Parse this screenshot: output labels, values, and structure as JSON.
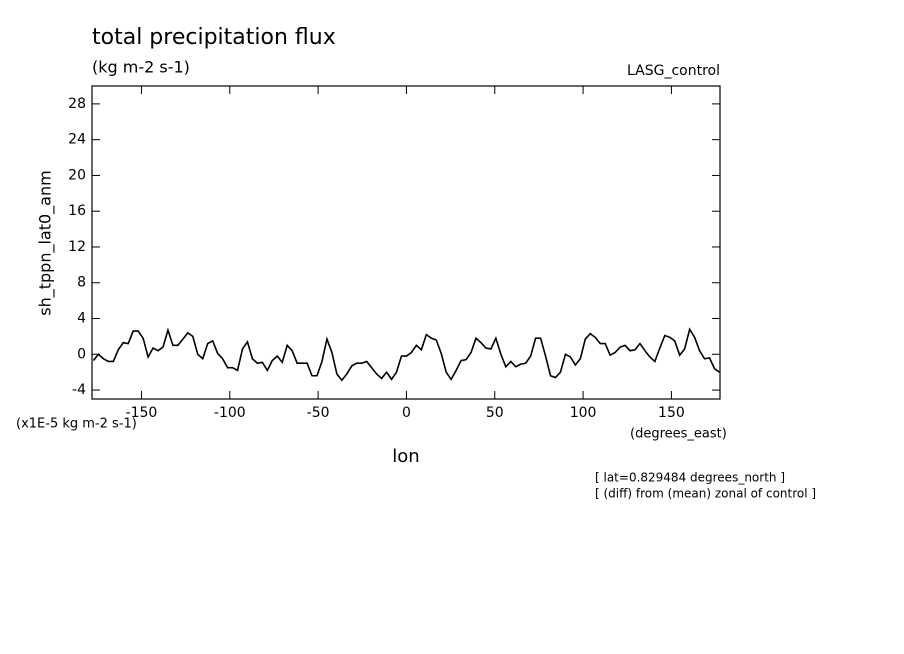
{
  "chart_data": {
    "type": "line",
    "title": "total precipitation flux",
    "subtitle": "(kg m-2 s-1)",
    "dataset_label": "LASG_control",
    "y_label": "sh_tppn_lat0_anm",
    "y_units": "(x1E-5 kg m-2 s-1)",
    "x_units": "(degrees_east)",
    "x_label": "lon",
    "annotations": [
      "[ lat=0.829484 degrees_north ]",
      "[ (diff) from (mean) zonal of control ]"
    ],
    "x": [
      -177.1875,
      -174.375,
      -171.5625,
      -168.75,
      -165.9375,
      -163.125,
      -160.3125,
      -157.5,
      -154.6875,
      -151.875,
      -149.0625,
      -146.25,
      -143.4375,
      -140.625,
      -137.8125,
      -135,
      -132.1875,
      -129.375,
      -126.5625,
      -123.75,
      -120.9375,
      -118.125,
      -115.3125,
      -112.5,
      -109.6875,
      -106.875,
      -104.0625,
      -101.25,
      -98.4375,
      -95.625,
      -92.8125,
      -90,
      -87.1875,
      -84.375,
      -81.5625,
      -78.75,
      -75.9375,
      -73.125,
      -70.3125,
      -67.5,
      -64.6875,
      -61.875,
      -59.0625,
      -56.25,
      -53.4375,
      -50.625,
      -47.8125,
      -45,
      -42.1875,
      -39.375,
      -36.5625,
      -33.75,
      -30.9375,
      -28.125,
      -25.3125,
      -22.5,
      -19.6875,
      -16.875,
      -14.0625,
      -11.25,
      -8.4375,
      -5.625,
      -2.8125,
      0,
      2.8125,
      5.625,
      8.4375,
      11.25,
      14.0625,
      16.875,
      19.6875,
      22.5,
      25.3125,
      28.125,
      30.9375,
      33.75,
      36.5625,
      39.375,
      42.1875,
      45,
      47.8125,
      50.625,
      53.4375,
      56.25,
      59.0625,
      61.875,
      64.6875,
      67.5,
      70.3125,
      73.125,
      75.9375,
      78.75,
      81.5625,
      84.375,
      87.1875,
      90,
      92.8125,
      95.625,
      98.4375,
      101.25,
      104.0625,
      106.875,
      109.6875,
      112.5,
      115.3125,
      118.125,
      120.9375,
      123.75,
      126.5625,
      129.375,
      132.1875,
      135,
      137.8125,
      140.625,
      143.4375,
      146.25,
      149.0625,
      151.875,
      154.6875,
      157.5,
      160.3125,
      163.125,
      165.9375,
      168.75,
      171.5625,
      174.375,
      177.1875
    ],
    "series": [
      {
        "color": "#000000",
        "values": [
          -0.7,
          0,
          -0.5,
          -0.8,
          -0.8,
          0.5,
          1.3,
          1.2,
          2.6,
          2.6,
          1.8,
          -0.3,
          0.7,
          0.4,
          0.8,
          2.7,
          1.0,
          1.0,
          1.7,
          2.4,
          2.0,
          0.0,
          -0.5,
          1.2,
          1.5,
          0.1,
          -0.5,
          -1.5,
          -1.5,
          -1.8,
          0.6,
          1.4,
          -0.5,
          -1.0,
          -0.9,
          -1.8,
          -0.7,
          -0.2,
          -0.9,
          1.0,
          0.4,
          -1.0,
          -1.0,
          -1.0,
          -2.4,
          -2.4,
          -0.8,
          1.7,
          0.2,
          -2.2,
          -2.9,
          -2.2,
          -1.3,
          -1.0,
          -1.0,
          -0.8,
          -1.5,
          -2.2,
          -2.7,
          -2.0,
          -2.8,
          -2.0,
          -0.2,
          -0.2,
          0.2,
          1.0,
          0.5,
          2.2,
          1.8,
          1.6,
          0.1,
          -2.0,
          -2.8,
          -1.8,
          -0.7,
          -0.6,
          0.2,
          1.8,
          1.3,
          0.7,
          0.6,
          1.8,
          0.0,
          -1.4,
          -0.8,
          -1.4,
          -1.1,
          -1.0,
          -0.2,
          1.8,
          1.8,
          -0.2,
          -2.4,
          -2.6,
          -2.0,
          0.0,
          -0.3,
          -1.2,
          -0.5,
          1.7,
          2.3,
          1.9,
          1.2,
          1.2,
          -0.1,
          0.2,
          0.8,
          1.0,
          0.4,
          0.5,
          1.2,
          0.4,
          -0.3,
          -0.8,
          0.7,
          2.1,
          1.9,
          1.5,
          -0.1,
          0.6,
          2.8,
          1.9,
          0.4,
          -0.5,
          -0.4,
          -1.6,
          -2.0
        ]
      }
    ],
    "xlim": [
      -178,
      177.5
    ],
    "xticks": [
      -150,
      -100,
      -50,
      0,
      50,
      100,
      150
    ],
    "ylim": [
      -5,
      30
    ],
    "yticks": [
      -4,
      0,
      4,
      8,
      12,
      16,
      20,
      24,
      28
    ],
    "grid": false
  }
}
